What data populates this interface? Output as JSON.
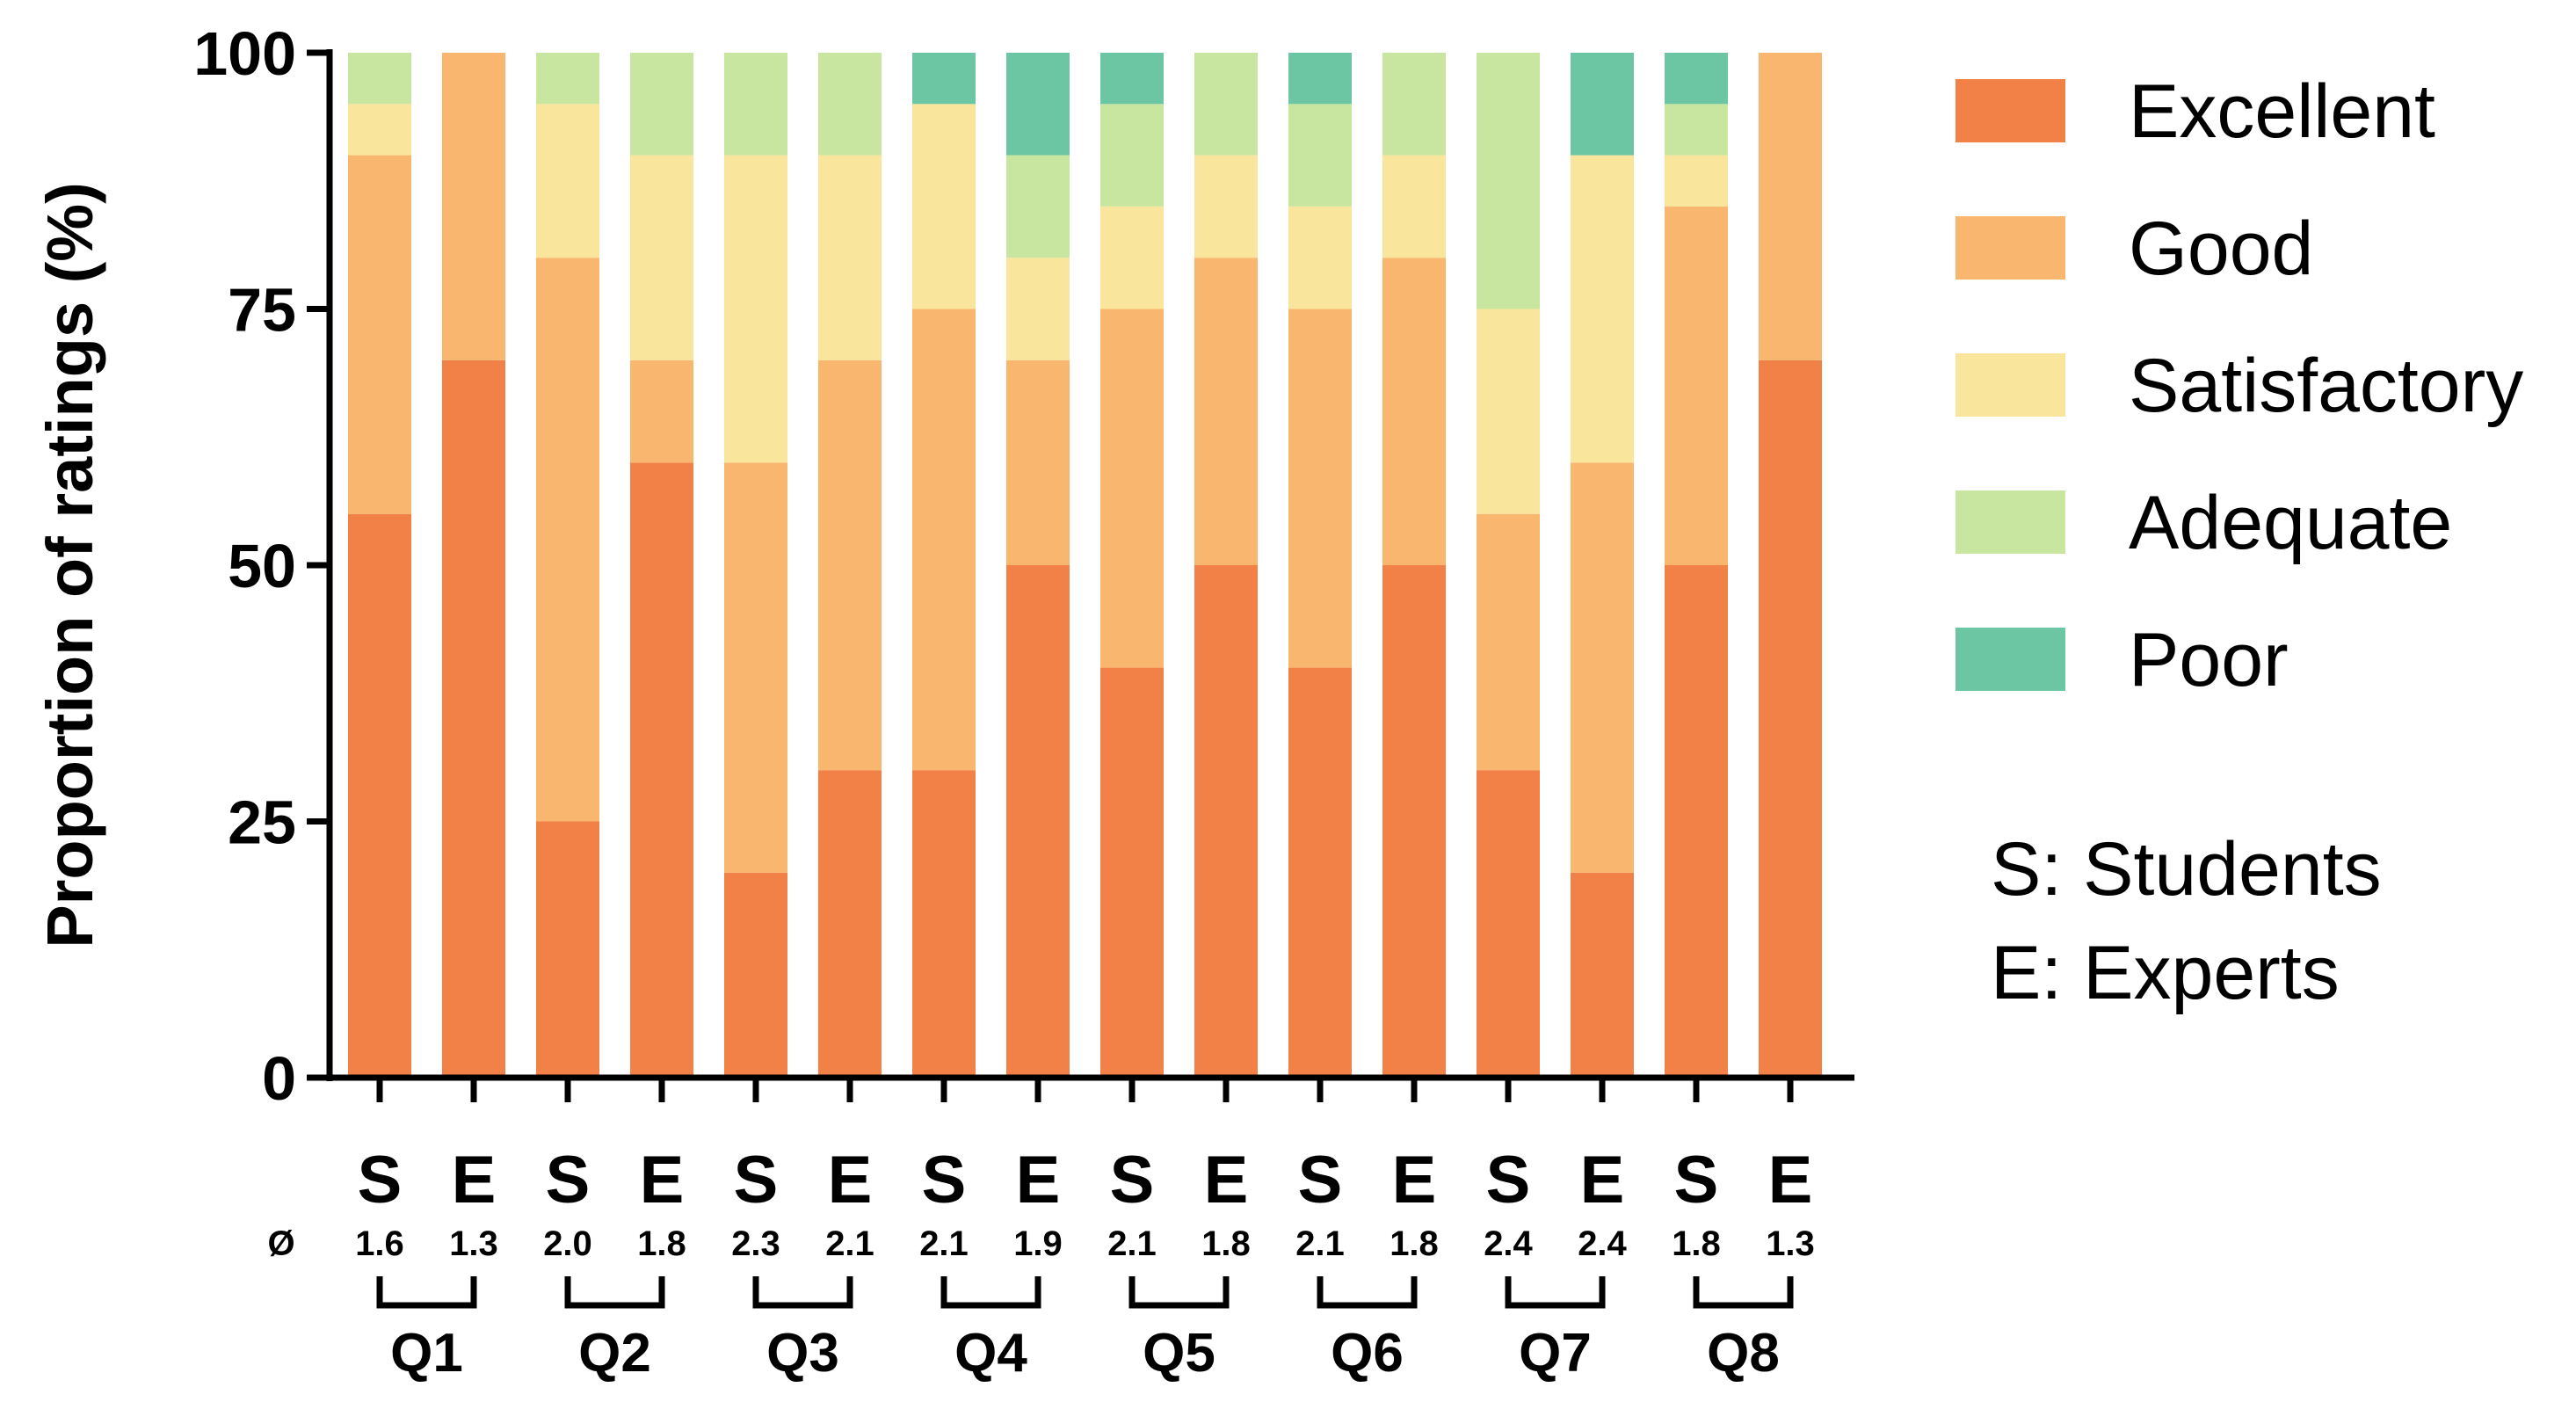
{
  "chart_data": {
    "type": "bar",
    "stacked": true,
    "ylabel": "Proportion of ratings (%)",
    "ylim": [
      0,
      100
    ],
    "yticks": [
      "0",
      "25",
      "50",
      "75",
      "100"
    ],
    "grid": false,
    "legend_position": "right",
    "avg_symbol": "Ø",
    "categories": [
      "S",
      "E",
      "S",
      "E",
      "S",
      "E",
      "S",
      "E",
      "S",
      "E",
      "S",
      "E",
      "S",
      "E",
      "S",
      "E"
    ],
    "averages": [
      "1.6",
      "1.3",
      "2.0",
      "1.8",
      "2.3",
      "2.1",
      "2.1",
      "1.9",
      "2.1",
      "1.8",
      "2.1",
      "1.8",
      "2.4",
      "2.4",
      "1.8",
      "1.3"
    ],
    "groups": [
      "Q1",
      "Q2",
      "Q3",
      "Q4",
      "Q5",
      "Q6",
      "Q7",
      "Q8"
    ],
    "series": [
      {
        "name": "Excellent",
        "color": "#F28148",
        "values": [
          55,
          70,
          25,
          60,
          20,
          30,
          30,
          50,
          40,
          50,
          40,
          50,
          30,
          20,
          50,
          70
        ]
      },
      {
        "name": "Good",
        "color": "#F9B66E",
        "values": [
          35,
          30,
          55,
          10,
          40,
          40,
          45,
          20,
          35,
          30,
          35,
          30,
          25,
          40,
          35,
          30
        ]
      },
      {
        "name": "Satisfactory",
        "color": "#FAE59C",
        "values": [
          5,
          0,
          15,
          20,
          30,
          20,
          20,
          10,
          10,
          10,
          10,
          10,
          20,
          30,
          5,
          0
        ]
      },
      {
        "name": "Adequate",
        "color": "#C8E6A0",
        "values": [
          5,
          0,
          5,
          10,
          10,
          10,
          0,
          10,
          10,
          10,
          10,
          10,
          25,
          0,
          5,
          0
        ]
      },
      {
        "name": "Poor",
        "color": "#6CC5A3",
        "values": [
          0,
          0,
          0,
          0,
          0,
          0,
          5,
          10,
          5,
          0,
          5,
          0,
          0,
          10,
          5,
          0
        ]
      }
    ],
    "notes": [
      "S: Students",
      "E: Experts"
    ]
  }
}
